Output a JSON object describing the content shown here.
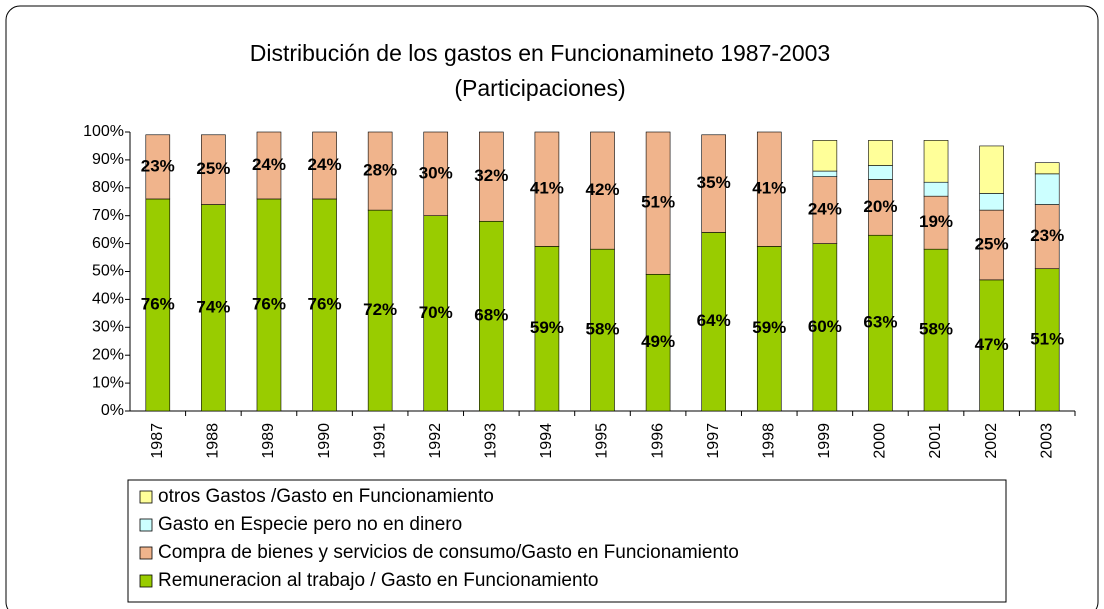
{
  "chart_data": {
    "type": "stacked_bar",
    "title": "Distribución de los gastos en Funcionamineto 1987-2003",
    "subtitle": "(Participaciones)",
    "categories": [
      "1987",
      "1988",
      "1989",
      "1990",
      "1991",
      "1992",
      "1993",
      "1994",
      "1995",
      "1996",
      "1997",
      "1998",
      "1999",
      "2000",
      "2001",
      "2002",
      "2003"
    ],
    "series": [
      {
        "name": "Remuneracion al trabajo / Gasto en Funcionamiento",
        "color": "#99cc00",
        "values": [
          76,
          74,
          76,
          76,
          72,
          70,
          68,
          59,
          58,
          49,
          64,
          59,
          60,
          63,
          58,
          47,
          51
        ],
        "value_labels": [
          "76%",
          "74%",
          "76%",
          "76%",
          "72%",
          "70%",
          "68%",
          "59%",
          "58%",
          "49%",
          "64%",
          "59%",
          "60%",
          "63%",
          "58%",
          "47%",
          "51%"
        ]
      },
      {
        "name": "Compra de bienes y servicios de consumo/Gasto en Funcionamiento",
        "color": "#f0b48c",
        "values": [
          23,
          25,
          24,
          24,
          28,
          30,
          32,
          41,
          42,
          51,
          35,
          41,
          24,
          20,
          19,
          25,
          23
        ],
        "value_labels": [
          "23%",
          "25%",
          "24%",
          "24%",
          "28%",
          "30%",
          "32%",
          "41%",
          "42%",
          "51%",
          "35%",
          "41%",
          "24%",
          "20%",
          "19%",
          "25%",
          "23%"
        ]
      },
      {
        "name": "Gasto en Especie pero no en dinero",
        "color": "#ccffff",
        "values": [
          0,
          0,
          0,
          0,
          0,
          0,
          0,
          0,
          0,
          0,
          0,
          0,
          2,
          5,
          5,
          6,
          11
        ]
      },
      {
        "name": "otros Gastos /Gasto en Funcionamiento",
        "color": "#ffff99",
        "values": [
          0,
          0,
          0,
          0,
          0,
          0,
          0,
          0,
          0,
          0,
          0,
          0,
          11,
          9,
          15,
          17,
          4
        ]
      }
    ],
    "ylim": [
      0,
      100
    ],
    "yticks": [
      {
        "value": 0,
        "label": "0%"
      },
      {
        "value": 10,
        "label": "10%"
      },
      {
        "value": 20,
        "label": "20%"
      },
      {
        "value": 30,
        "label": "30%"
      },
      {
        "value": 40,
        "label": "40%"
      },
      {
        "value": 50,
        "label": "50%"
      },
      {
        "value": 60,
        "label": "60%"
      },
      {
        "value": 70,
        "label": "70%"
      },
      {
        "value": 80,
        "label": "80%"
      },
      {
        "value": 90,
        "label": "90%"
      },
      {
        "value": 100,
        "label": "100%"
      }
    ],
    "grid": false
  }
}
